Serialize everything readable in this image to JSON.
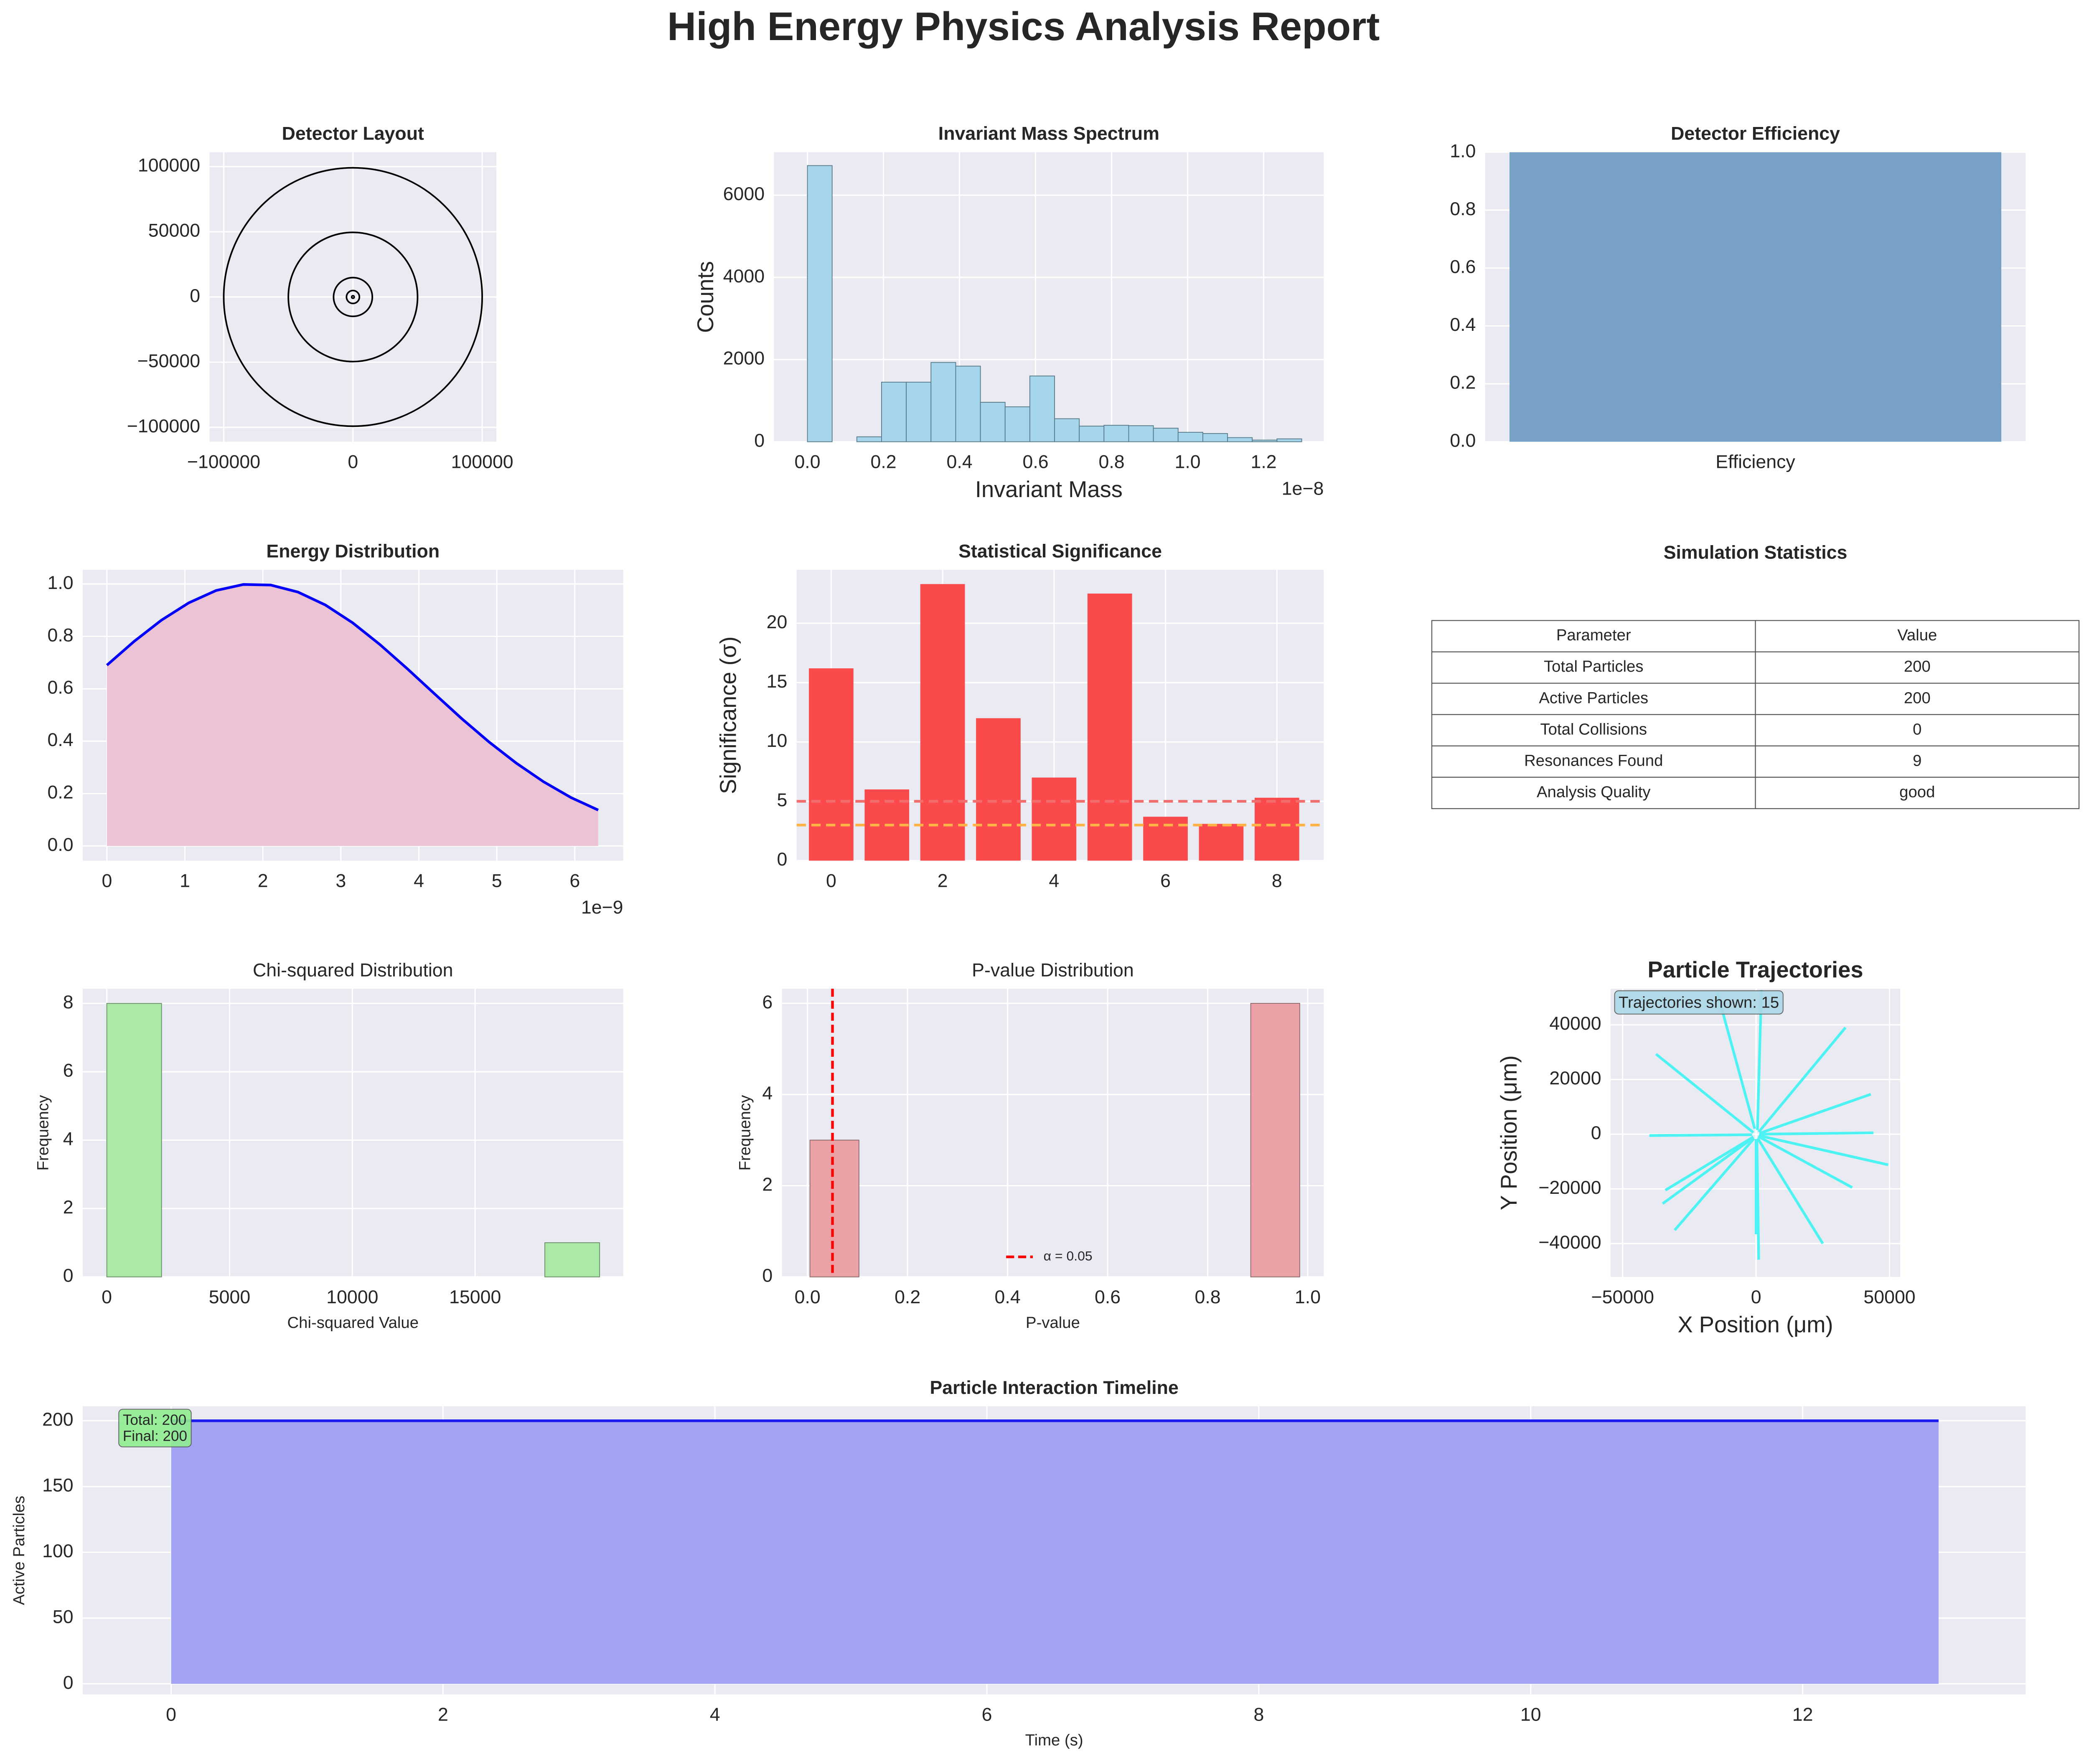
{
  "title": "High Energy Physics Analysis Report",
  "chart_data": [
    {
      "type": "circles",
      "title": "Detector Layout",
      "radii": [
        100000,
        50000,
        15000,
        5000,
        1000
      ],
      "color": "#000000",
      "xlim": [
        -111000,
        111000
      ],
      "ylim": [
        -111000,
        111000
      ],
      "xticks": [
        {
          "value": -100000,
          "label": "−100000"
        },
        0,
        100000
      ],
      "yticks": [
        {
          "value": -100000,
          "label": "−100000"
        },
        {
          "value": -50000,
          "label": "−50000"
        },
        0,
        50000,
        100000
      ]
    },
    {
      "type": "histogram",
      "title": "Invariant Mass Spectrum",
      "x_label": "Invariant Mass",
      "y_label": "Counts",
      "bins": [
        0,
        6.5e-10,
        1.3e-09,
        1.95e-09,
        2.6e-09,
        3.25e-09,
        3.9e-09,
        4.55e-09,
        5.2e-09,
        5.85e-09,
        6.5e-09,
        7.15e-09,
        7.8e-09,
        8.45e-09,
        9.1e-09,
        9.75e-09,
        1.04e-08,
        1.105e-08,
        1.17e-08,
        1.235e-08,
        1.3e-08
      ],
      "values": [
        6720,
        0,
        120,
        1450,
        1450,
        1930,
        1840,
        960,
        850,
        1600,
        560,
        380,
        400,
        390,
        330,
        230,
        200,
        100,
        40,
        70
      ],
      "color": "#a6d6eb",
      "edge_color": "#5a7d8c",
      "xlim": [
        -8.8e-10,
        1.358e-08
      ],
      "ylim": [
        0,
        7045
      ],
      "xticks": [
        {
          "value": 0,
          "label": "0.0"
        },
        {
          "value": 2e-09,
          "label": "0.2"
        },
        {
          "value": 4e-09,
          "label": "0.4"
        },
        {
          "value": 6e-09,
          "label": "0.6"
        },
        {
          "value": 8e-09,
          "label": "0.8"
        },
        {
          "value": 1e-08,
          "label": "1.0"
        },
        {
          "value": 1.2e-08,
          "label": "1.2"
        }
      ],
      "x_offset_label": "1e−8",
      "yticks": [
        0,
        2000,
        4000,
        6000
      ]
    },
    {
      "type": "bar",
      "title": "Detector Efficiency",
      "categories": [
        "Efficiency"
      ],
      "values": [
        1.0
      ],
      "color": "#78a1c7",
      "ylim": [
        0,
        1
      ],
      "yticks": [
        {
          "value": 0,
          "label": "0.0"
        },
        {
          "value": 0.2,
          "label": "0.2"
        },
        {
          "value": 0.4,
          "label": "0.4"
        },
        {
          "value": 0.6,
          "label": "0.6"
        },
        {
          "value": 0.8,
          "label": "0.8"
        },
        {
          "value": 1,
          "label": "1.0"
        }
      ]
    },
    {
      "type": "area",
      "title": "Energy Distribution",
      "x": [
        0,
        3.5e-10,
        7e-10,
        1.05e-09,
        1.4e-09,
        1.75e-09,
        2.1e-09,
        2.45e-09,
        2.8e-09,
        3.15e-09,
        3.5e-09,
        3.85e-09,
        4.2e-09,
        4.55e-09,
        4.9e-09,
        5.25e-09,
        5.6e-09,
        5.95e-09,
        6.3e-09
      ],
      "values": [
        0.69,
        0.781,
        0.862,
        0.928,
        0.975,
        0.998,
        0.996,
        0.969,
        0.92,
        0.852,
        0.769,
        0.677,
        0.581,
        0.486,
        0.397,
        0.316,
        0.245,
        0.185,
        0.137
      ],
      "color": "#0000ff",
      "fill_color": "#ebc3d4",
      "xlim": [
        -3.1e-10,
        6.62e-09
      ],
      "ylim": [
        -0.056,
        1.054
      ],
      "xticks": [
        0,
        {
          "value": 1e-09,
          "label": "1"
        },
        {
          "value": 2e-09,
          "label": "2"
        },
        {
          "value": 3e-09,
          "label": "3"
        },
        {
          "value": 4e-09,
          "label": "4"
        },
        {
          "value": 5e-09,
          "label": "5"
        },
        {
          "value": 6e-09,
          "label": "6"
        }
      ],
      "x_offset_label": "1e−9",
      "yticks": [
        {
          "value": 0,
          "label": "0.0"
        },
        {
          "value": 0.2,
          "label": "0.2"
        },
        {
          "value": 0.4,
          "label": "0.4"
        },
        {
          "value": 0.6,
          "label": "0.6"
        },
        {
          "value": 0.8,
          "label": "0.8"
        },
        {
          "value": 1,
          "label": "1.0"
        }
      ]
    },
    {
      "type": "bar",
      "title": "Statistical Significance",
      "y_label": "Significance (σ)",
      "x": [
        0,
        1,
        2,
        3,
        4,
        5,
        6,
        7,
        8
      ],
      "values": [
        16.2,
        6.0,
        23.3,
        12.0,
        7.0,
        22.5,
        3.7,
        3.1,
        5.3
      ],
      "color": "#fb4a4b",
      "hlines": [
        {
          "value": 5,
          "color": "#f26d6d"
        },
        {
          "value": 3,
          "color": "#ffb347"
        }
      ],
      "xlim": [
        -0.62,
        8.84
      ],
      "ylim": [
        0,
        24.5
      ],
      "xticks": [
        0,
        2,
        4,
        6,
        8
      ],
      "yticks": [
        0,
        5,
        10,
        15,
        20
      ]
    },
    {
      "type": "table",
      "title": "Simulation Statistics",
      "columns": [
        "Parameter",
        "Value"
      ],
      "rows": [
        [
          "Total Particles",
          200
        ],
        [
          "Active Particles",
          200
        ],
        [
          "Total Collisions",
          0
        ],
        [
          "Resonances Found",
          9
        ],
        [
          "Analysis Quality",
          "good"
        ]
      ]
    },
    {
      "type": "histogram",
      "title": "Chi-squared Distribution",
      "x_label": "Chi-squared Value",
      "y_label": "Frequency",
      "bins": [
        0,
        2230,
        4460,
        6690,
        8920,
        11150,
        13380,
        15610,
        17840,
        20070
      ],
      "values": [
        8,
        0,
        0,
        0,
        0,
        0,
        0,
        0,
        1
      ],
      "color": "#aaeaa6",
      "edge_color": "#6b8f68",
      "xlim": [
        -980,
        21030
      ],
      "ylim": [
        0,
        8.43
      ],
      "xticks": [
        0,
        5000,
        10000,
        15000
      ],
      "yticks": [
        0,
        2,
        4,
        6,
        8
      ]
    },
    {
      "type": "histogram",
      "title": "P-value Distribution",
      "x_label": "P-value",
      "y_label": "Frequency",
      "bins": [
        0.005,
        0.1029,
        0.2008,
        0.2987,
        0.3966,
        0.4945,
        0.5924,
        0.6903,
        0.7882,
        0.8861,
        0.984
      ],
      "values": [
        3,
        0,
        0,
        0,
        0,
        0,
        0,
        0,
        0,
        6
      ],
      "color": "#eba1a5",
      "edge_color": "#8f6b6d",
      "vlines": [
        {
          "value": 0.05,
          "name": "α = 0.05",
          "color": "#ff0000"
        }
      ],
      "xlim": [
        -0.051,
        1.032
      ],
      "ylim": [
        0,
        6.32
      ],
      "xticks": [
        {
          "value": 0,
          "label": "0.0"
        },
        {
          "value": 0.2,
          "label": "0.2"
        },
        {
          "value": 0.4,
          "label": "0.4"
        },
        {
          "value": 0.6,
          "label": "0.6"
        },
        {
          "value": 0.8,
          "label": "0.8"
        },
        {
          "value": 1,
          "label": "1.0"
        }
      ],
      "yticks": [
        0,
        2,
        4,
        6
      ]
    },
    {
      "type": "line",
      "title": "Particle Trajectories",
      "x_label": "X Position (μm)",
      "y_label": "Y Position (μm)",
      "annotation": [
        "Trajectories shown: 15"
      ],
      "annotation_color": "#add8e6",
      "color": "#4df3f3",
      "series": [
        {
          "x": [
            -500,
            -14500
          ],
          "values": [
            2000,
            51700
          ]
        },
        {
          "x": [
            500,
            2000
          ],
          "values": [
            1500,
            52700
          ]
        },
        {
          "x": [
            1000,
            33500
          ],
          "values": [
            800,
            39000
          ]
        },
        {
          "x": [
            1500,
            43000
          ],
          "values": [
            400,
            14600
          ]
        },
        {
          "x": [
            1200,
            44000
          ],
          "values": [
            0,
            500
          ]
        },
        {
          "x": [
            1000,
            49500
          ],
          "values": [
            -500,
            -11200
          ]
        },
        {
          "x": [
            800,
            36000
          ],
          "values": [
            -800,
            -19500
          ]
        },
        {
          "x": [
            600,
            25000
          ],
          "values": [
            -1500,
            -40000
          ]
        },
        {
          "x": [
            300,
            1000
          ],
          "values": [
            -2000,
            -45900
          ]
        },
        {
          "x": [
            0,
            0
          ],
          "values": [
            -1800,
            -36600
          ]
        },
        {
          "x": [
            -800,
            -30500
          ],
          "values": [
            -1600,
            -35100
          ]
        },
        {
          "x": [
            -1200,
            -35000
          ],
          "values": [
            -1400,
            -25400
          ]
        },
        {
          "x": [
            -1000,
            -34000
          ],
          "values": [
            -1000,
            -20500
          ]
        },
        {
          "x": [
            -1500,
            -40000
          ],
          "values": [
            -200,
            -500
          ]
        },
        {
          "x": [
            -1000,
            -37500
          ],
          "values": [
            600,
            29300
          ]
        }
      ],
      "xlim": [
        -54500,
        54000
      ],
      "ylim": [
        -52200,
        53200
      ],
      "xticks": [
        {
          "value": -50000,
          "label": "−50000"
        },
        0,
        50000
      ],
      "yticks": [
        {
          "value": -40000,
          "label": "−40000"
        },
        {
          "value": -20000,
          "label": "−20000"
        },
        0,
        20000,
        40000
      ]
    },
    {
      "type": "area",
      "title": "Particle Interaction Timeline",
      "x_label": "Time (s)",
      "y_label": "Active Particles",
      "annotation": [
        "Total: 200",
        "Final: 200"
      ],
      "annotation_color": "#90ee90",
      "x": [
        0,
        13
      ],
      "values": [
        200,
        200
      ],
      "color": "#1a1aee",
      "fill_color": "#a2a4f3",
      "xlim": [
        -0.65,
        13.64
      ],
      "ylim": [
        -8.1,
        211
      ],
      "xticks": [
        0,
        2,
        4,
        6,
        8,
        10,
        12
      ],
      "yticks": [
        0,
        50,
        100,
        150,
        200
      ]
    }
  ]
}
